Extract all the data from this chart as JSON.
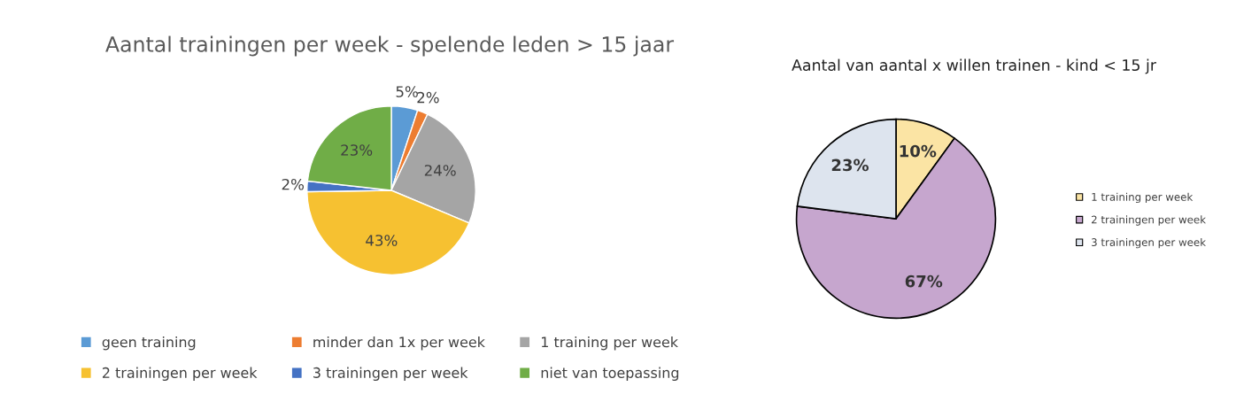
{
  "chart_data": [
    {
      "type": "pie",
      "title": "Aantal trainingen per week - spelende leden > 15 jaar",
      "categories": [
        "geen training",
        "minder dan 1x per week",
        "1 training per week",
        "2 trainingen per week",
        "3 trainingen per week",
        "niet van toepassing"
      ],
      "values": [
        5,
        2,
        24,
        43,
        2,
        23
      ],
      "value_labels": [
        "5%",
        "2%",
        "24%",
        "43%",
        "2%",
        "23%"
      ],
      "colors": [
        "#5b9bd5",
        "#ed7d31",
        "#a5a5a5",
        "#f6c131",
        "#4472c4",
        "#70ad47"
      ],
      "legend": "bottom"
    },
    {
      "type": "pie",
      "title": "Aantal van aantal x willen trainen - kind < 15 jr",
      "categories": [
        "1 training per week",
        "2 trainingen per week",
        "3 trainingen per week"
      ],
      "values": [
        10,
        67,
        23
      ],
      "value_labels": [
        "10%",
        "67%",
        "23%"
      ],
      "colors": [
        "#fbe4a4",
        "#c6a6ce",
        "#dde4ee"
      ],
      "legend": "right"
    }
  ]
}
